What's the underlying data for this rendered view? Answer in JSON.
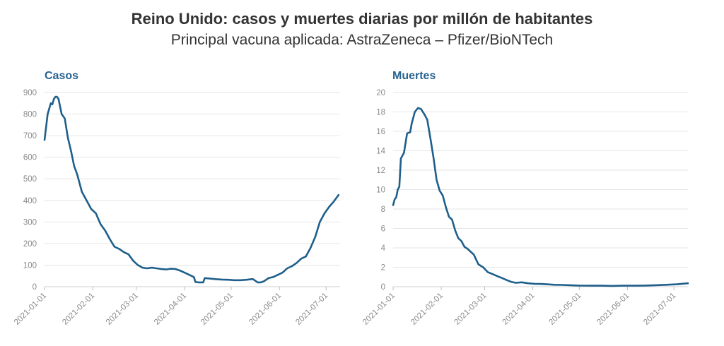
{
  "header": {
    "title": "Reino Unido: casos y muertes diarias por millón de habitantes",
    "subtitle": "Principal vacuna aplicada: AstraZeneca – Pfizer/BioNTech"
  },
  "colors": {
    "line": "#1f5f8b",
    "panel_title": "#27638f",
    "grid": "#e6e6e6",
    "tick": "#8a8a8a"
  },
  "chart_data": [
    {
      "type": "line",
      "title": "Casos",
      "ylim": [
        0,
        900
      ],
      "yticks": [
        0,
        100,
        200,
        300,
        400,
        500,
        600,
        700,
        800,
        900
      ],
      "xlim": [
        "2021-01-01",
        "2021-07-10"
      ],
      "xticks": [
        "2021-01-01",
        "2021-02-01",
        "2021-03-01",
        "2021-04-01",
        "2021-05-01",
        "2021-06-01",
        "2021-07-01"
      ],
      "grid": true,
      "x": [
        "2021-01-01",
        "2021-01-03",
        "2021-01-05",
        "2021-01-06",
        "2021-01-07",
        "2021-01-08",
        "2021-01-09",
        "2021-01-10",
        "2021-01-12",
        "2021-01-14",
        "2021-01-16",
        "2021-01-18",
        "2021-01-20",
        "2021-01-22",
        "2021-01-25",
        "2021-01-28",
        "2021-01-31",
        "2021-02-03",
        "2021-02-06",
        "2021-02-09",
        "2021-02-12",
        "2021-02-15",
        "2021-02-18",
        "2021-02-21",
        "2021-02-24",
        "2021-02-27",
        "2021-03-02",
        "2021-03-05",
        "2021-03-08",
        "2021-03-11",
        "2021-03-14",
        "2021-03-17",
        "2021-03-20",
        "2021-03-23",
        "2021-03-26",
        "2021-03-29",
        "2021-04-01",
        "2021-04-04",
        "2021-04-07",
        "2021-04-08",
        "2021-04-10",
        "2021-04-13",
        "2021-04-14",
        "2021-04-17",
        "2021-04-21",
        "2021-04-25",
        "2021-04-29",
        "2021-05-03",
        "2021-05-07",
        "2021-05-11",
        "2021-05-14",
        "2021-05-15",
        "2021-05-18",
        "2021-05-20",
        "2021-05-22",
        "2021-05-25",
        "2021-05-28",
        "2021-05-31",
        "2021-06-03",
        "2021-06-06",
        "2021-06-09",
        "2021-06-12",
        "2021-06-15",
        "2021-06-18",
        "2021-06-21",
        "2021-06-24",
        "2021-06-27",
        "2021-06-30",
        "2021-07-03",
        "2021-07-06",
        "2021-07-09"
      ],
      "y": [
        680,
        800,
        850,
        845,
        870,
        880,
        880,
        870,
        800,
        780,
        690,
        630,
        560,
        520,
        440,
        400,
        360,
        340,
        290,
        260,
        220,
        185,
        175,
        160,
        150,
        120,
        100,
        88,
        85,
        88,
        85,
        82,
        80,
        83,
        82,
        75,
        65,
        55,
        45,
        22,
        20,
        20,
        40,
        38,
        35,
        33,
        32,
        30,
        30,
        32,
        35,
        35,
        20,
        20,
        25,
        40,
        45,
        55,
        65,
        85,
        95,
        110,
        130,
        140,
        180,
        230,
        300,
        340,
        370,
        395,
        425
      ]
    },
    {
      "type": "line",
      "title": "Muertes",
      "ylim": [
        0,
        20
      ],
      "yticks": [
        0,
        2,
        4,
        6,
        8,
        10,
        12,
        14,
        16,
        18,
        20
      ],
      "xlim": [
        "2021-01-01",
        "2021-07-10"
      ],
      "xticks": [
        "2021-01-01",
        "2021-02-01",
        "2021-03-01",
        "2021-04-01",
        "2021-05-01",
        "2021-06-01",
        "2021-07-01"
      ],
      "grid": true,
      "x": [
        "2021-01-01",
        "2021-01-02",
        "2021-01-03",
        "2021-01-04",
        "2021-01-05",
        "2021-01-06",
        "2021-01-08",
        "2021-01-10",
        "2021-01-12",
        "2021-01-13",
        "2021-01-15",
        "2021-01-17",
        "2021-01-19",
        "2021-01-21",
        "2021-01-23",
        "2021-01-25",
        "2021-01-27",
        "2021-01-29",
        "2021-01-31",
        "2021-02-02",
        "2021-02-04",
        "2021-02-06",
        "2021-02-08",
        "2021-02-10",
        "2021-02-12",
        "2021-02-14",
        "2021-02-16",
        "2021-02-18",
        "2021-02-20",
        "2021-02-22",
        "2021-02-25",
        "2021-02-28",
        "2021-03-03",
        "2021-03-06",
        "2021-03-09",
        "2021-03-12",
        "2021-03-15",
        "2021-03-18",
        "2021-03-21",
        "2021-03-25",
        "2021-03-29",
        "2021-04-02",
        "2021-04-06",
        "2021-04-10",
        "2021-04-15",
        "2021-04-20",
        "2021-04-25",
        "2021-05-01",
        "2021-05-08",
        "2021-05-15",
        "2021-05-22",
        "2021-05-29",
        "2021-06-05",
        "2021-06-12",
        "2021-06-19",
        "2021-06-26",
        "2021-07-03",
        "2021-07-10"
      ],
      "y": [
        8.4,
        9.0,
        9.2,
        10.0,
        10.3,
        13.2,
        13.8,
        15.8,
        15.9,
        16.8,
        18.0,
        18.4,
        18.3,
        17.8,
        17.2,
        15.3,
        13.3,
        11.0,
        9.9,
        9.4,
        8.2,
        7.2,
        6.9,
        5.8,
        5.0,
        4.7,
        4.1,
        3.9,
        3.6,
        3.3,
        2.3,
        2.0,
        1.5,
        1.3,
        1.1,
        0.9,
        0.7,
        0.5,
        0.4,
        0.45,
        0.35,
        0.3,
        0.28,
        0.25,
        0.2,
        0.18,
        0.15,
        0.12,
        0.1,
        0.1,
        0.08,
        0.1,
        0.1,
        0.12,
        0.15,
        0.2,
        0.25,
        0.35
      ]
    }
  ]
}
